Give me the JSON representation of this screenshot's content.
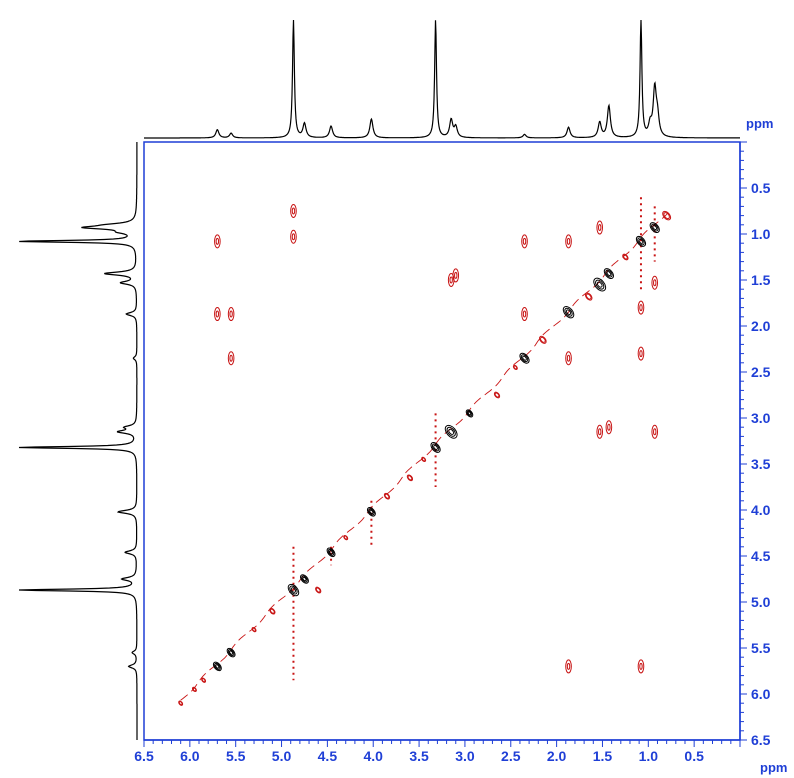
{
  "chart_data": {
    "type": "2d-nmr-contour",
    "x_unit": "ppm",
    "y_unit": "ppm",
    "x_range": [
      6.5,
      0.0
    ],
    "y_range": [
      0.0,
      6.5
    ],
    "x_axis_reversed": true,
    "y_axis_increasing_downward": true,
    "grid": false,
    "x_ticks": [
      "6.5",
      "6.0",
      "5.5",
      "5.0",
      "4.5",
      "4.0",
      "3.5",
      "3.0",
      "2.5",
      "2.0",
      "1.5",
      "1.0",
      "0.5"
    ],
    "y_ticks": [
      "0.5",
      "1.0",
      "1.5",
      "2.0",
      "2.5",
      "3.0",
      "3.5",
      "4.0",
      "4.5",
      "5.0",
      "5.5",
      "6.0",
      "6.5"
    ],
    "colors": {
      "axis": "#1f3fd6",
      "positive_contour": "#000000",
      "negative_contour": "#c81414",
      "spectrum": "#000000"
    },
    "projection_1d_peaks": [
      {
        "ppm": 5.7,
        "intensity": 0.07
      },
      {
        "ppm": 5.55,
        "intensity": 0.04
      },
      {
        "ppm": 4.87,
        "intensity": 1.0
      },
      {
        "ppm": 4.75,
        "intensity": 0.12
      },
      {
        "ppm": 4.46,
        "intensity": 0.1
      },
      {
        "ppm": 4.02,
        "intensity": 0.16
      },
      {
        "ppm": 3.32,
        "intensity": 1.0
      },
      {
        "ppm": 3.15,
        "intensity": 0.15
      },
      {
        "ppm": 3.1,
        "intensity": 0.09
      },
      {
        "ppm": 2.35,
        "intensity": 0.03
      },
      {
        "ppm": 1.87,
        "intensity": 0.09
      },
      {
        "ppm": 1.53,
        "intensity": 0.13
      },
      {
        "ppm": 1.43,
        "intensity": 0.27
      },
      {
        "ppm": 1.08,
        "intensity": 1.0
      },
      {
        "ppm": 0.98,
        "intensity": 0.1
      },
      {
        "ppm": 0.93,
        "intensity": 0.4
      },
      {
        "ppm": 0.9,
        "intensity": 0.16
      }
    ],
    "diagonal_peaks": [
      {
        "x": 5.7,
        "y": 5.7,
        "sign": "positive",
        "size": 0.06
      },
      {
        "x": 5.55,
        "y": 5.55,
        "sign": "positive",
        "size": 0.06
      },
      {
        "x": 4.87,
        "y": 4.87,
        "sign": "positive",
        "size": 0.08
      },
      {
        "x": 4.75,
        "y": 4.75,
        "sign": "positive",
        "size": 0.06
      },
      {
        "x": 4.46,
        "y": 4.46,
        "sign": "positive",
        "size": 0.06
      },
      {
        "x": 4.02,
        "y": 4.02,
        "sign": "positive",
        "size": 0.06
      },
      {
        "x": 3.32,
        "y": 3.32,
        "sign": "positive",
        "size": 0.07
      },
      {
        "x": 3.15,
        "y": 3.15,
        "sign": "positive",
        "size": 0.09
      },
      {
        "x": 2.95,
        "y": 2.95,
        "sign": "positive",
        "size": 0.05
      },
      {
        "x": 2.35,
        "y": 2.35,
        "sign": "positive",
        "size": 0.07
      },
      {
        "x": 1.87,
        "y": 1.85,
        "sign": "positive",
        "size": 0.08
      },
      {
        "x": 1.53,
        "y": 1.55,
        "sign": "positive",
        "size": 0.09
      },
      {
        "x": 1.43,
        "y": 1.43,
        "sign": "positive",
        "size": 0.07
      },
      {
        "x": 1.08,
        "y": 1.08,
        "sign": "positive",
        "size": 0.07
      },
      {
        "x": 0.93,
        "y": 0.93,
        "sign": "positive",
        "size": 0.07
      },
      {
        "x": 6.1,
        "y": 6.1,
        "sign": "negative",
        "size": 0.03
      },
      {
        "x": 5.95,
        "y": 5.95,
        "sign": "negative",
        "size": 0.03
      },
      {
        "x": 5.85,
        "y": 5.85,
        "sign": "negative",
        "size": 0.03
      },
      {
        "x": 5.3,
        "y": 5.3,
        "sign": "negative",
        "size": 0.03
      },
      {
        "x": 5.1,
        "y": 5.1,
        "sign": "negative",
        "size": 0.04
      },
      {
        "x": 4.6,
        "y": 4.87,
        "sign": "negative",
        "size": 0.04
      },
      {
        "x": 4.3,
        "y": 4.3,
        "sign": "negative",
        "size": 0.03
      },
      {
        "x": 3.85,
        "y": 3.85,
        "sign": "negative",
        "size": 0.04
      },
      {
        "x": 3.6,
        "y": 3.65,
        "sign": "negative",
        "size": 0.04
      },
      {
        "x": 3.45,
        "y": 3.45,
        "sign": "negative",
        "size": 0.03
      },
      {
        "x": 2.65,
        "y": 2.75,
        "sign": "negative",
        "size": 0.04
      },
      {
        "x": 2.45,
        "y": 2.45,
        "sign": "negative",
        "size": 0.03
      },
      {
        "x": 2.15,
        "y": 2.15,
        "sign": "negative",
        "size": 0.05
      },
      {
        "x": 1.65,
        "y": 1.68,
        "sign": "negative",
        "size": 0.05
      },
      {
        "x": 1.25,
        "y": 1.25,
        "sign": "negative",
        "size": 0.04
      },
      {
        "x": 0.8,
        "y": 0.8,
        "sign": "negative",
        "size": 0.06
      }
    ],
    "cross_peaks": [
      {
        "x": 5.7,
        "y": 1.08,
        "sign": "negative"
      },
      {
        "x": 5.7,
        "y": 1.87,
        "sign": "negative"
      },
      {
        "x": 5.55,
        "y": 1.87,
        "sign": "negative"
      },
      {
        "x": 5.55,
        "y": 2.35,
        "sign": "negative"
      },
      {
        "x": 4.87,
        "y": 0.75,
        "sign": "negative"
      },
      {
        "x": 4.87,
        "y": 1.03,
        "sign": "negative"
      },
      {
        "x": 3.15,
        "y": 1.5,
        "sign": "negative"
      },
      {
        "x": 3.1,
        "y": 1.45,
        "sign": "negative"
      },
      {
        "x": 2.35,
        "y": 1.08,
        "sign": "negative"
      },
      {
        "x": 1.87,
        "y": 1.08,
        "sign": "negative"
      },
      {
        "x": 2.35,
        "y": 1.87,
        "sign": "negative"
      },
      {
        "x": 1.87,
        "y": 2.35,
        "sign": "negative"
      },
      {
        "x": 1.53,
        "y": 0.93,
        "sign": "negative"
      },
      {
        "x": 1.53,
        "y": 3.15,
        "sign": "negative"
      },
      {
        "x": 1.43,
        "y": 3.1,
        "sign": "negative"
      },
      {
        "x": 1.08,
        "y": 1.8,
        "sign": "negative"
      },
      {
        "x": 1.08,
        "y": 2.3,
        "sign": "negative"
      },
      {
        "x": 1.08,
        "y": 5.7,
        "sign": "negative"
      },
      {
        "x": 1.87,
        "y": 5.7,
        "sign": "negative"
      },
      {
        "x": 0.93,
        "y": 1.53,
        "sign": "negative"
      },
      {
        "x": 0.93,
        "y": 3.15,
        "sign": "negative"
      }
    ],
    "streaks": [
      {
        "x": 4.87,
        "y_from": 4.4,
        "y_to": 5.85,
        "sign": "negative"
      },
      {
        "x": 3.32,
        "y_from": 2.95,
        "y_to": 3.75,
        "sign": "negative"
      },
      {
        "x": 1.08,
        "y_from": 0.6,
        "y_to": 1.6,
        "sign": "negative"
      },
      {
        "x": 0.93,
        "y_from": 0.7,
        "y_to": 1.3,
        "sign": "negative"
      },
      {
        "x": 4.02,
        "y_from": 3.9,
        "y_to": 4.4,
        "sign": "negative"
      },
      {
        "x": 4.46,
        "y_from": 4.4,
        "y_to": 4.6,
        "sign": "negative"
      }
    ]
  }
}
